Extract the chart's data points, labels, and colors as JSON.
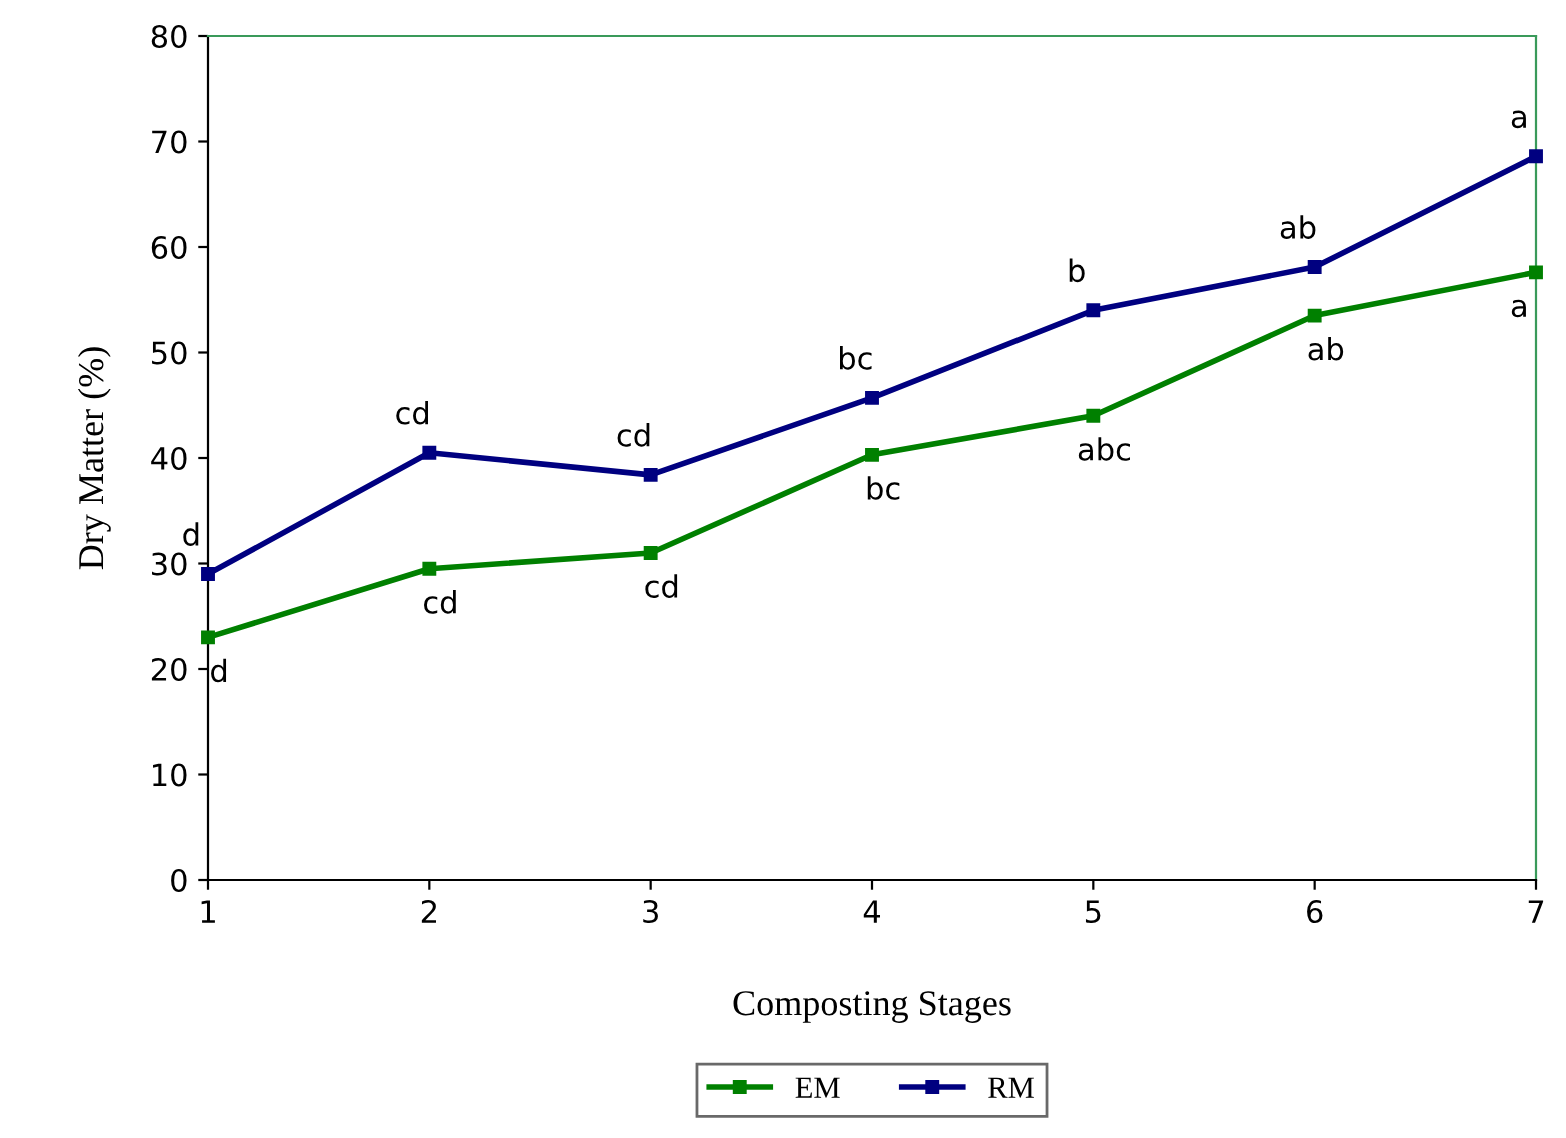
{
  "chart_data": {
    "type": "line",
    "xlabel": "Composting Stages",
    "ylabel": "Dry Matter (%)",
    "x": [
      1,
      2,
      3,
      4,
      5,
      6,
      7
    ],
    "series": [
      {
        "name": "EM",
        "color": "#008000",
        "values": [
          23,
          29.5,
          31,
          40.3,
          44,
          53.5,
          57.6
        ]
      },
      {
        "name": "RM",
        "color": "#000080",
        "values": [
          29,
          40.5,
          38.4,
          45.7,
          54,
          58.1,
          68.6
        ]
      }
    ],
    "xlim": [
      1,
      7
    ],
    "xticks": [
      1,
      2,
      3,
      4,
      5,
      6,
      7
    ],
    "ylim": [
      0,
      80
    ],
    "yticks": [
      0,
      10,
      20,
      30,
      40,
      50,
      60,
      70,
      80
    ],
    "grid": false,
    "legend": "bottom",
    "marker": "square",
    "line_style": "solid",
    "annotations": [
      {
        "text": "d",
        "x": 1,
        "y": 23
      },
      {
        "text": "cd",
        "x": 2,
        "y": 29.5
      },
      {
        "text": "cd",
        "x": 3,
        "y": 31
      },
      {
        "text": "bc",
        "x": 4,
        "y": 40.3
      },
      {
        "text": "abc",
        "x": 5,
        "y": 44
      },
      {
        "text": "ab",
        "x": 6,
        "y": 53.5
      },
      {
        "text": "a",
        "x": 7,
        "y": 57.6
      },
      {
        "text": "d",
        "x": 1,
        "y": 29
      },
      {
        "text": "cd",
        "x": 2,
        "y": 40.5
      },
      {
        "text": "cd",
        "x": 3,
        "y": 38.4
      },
      {
        "text": "bc",
        "x": 4,
        "y": 45.7
      },
      {
        "text": "b",
        "x": 5,
        "y": 54
      },
      {
        "text": "ab",
        "x": 6,
        "y": 58.1
      },
      {
        "text": "a",
        "x": 7,
        "y": 68.6
      }
    ]
  }
}
